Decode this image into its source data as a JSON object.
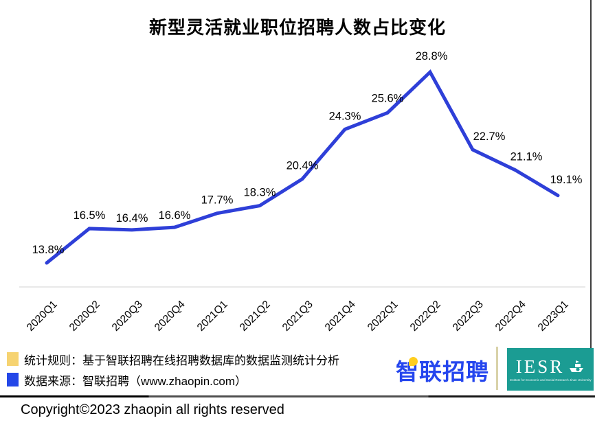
{
  "title": "新型灵活就业职位招聘人数占比变化",
  "chart_data": {
    "type": "line",
    "title": "新型灵活就业职位招聘人数占比变化",
    "categories": [
      "2020Q1",
      "2020Q2",
      "2020Q3",
      "2020Q4",
      "2021Q1",
      "2021Q2",
      "2021Q3",
      "2021Q4",
      "2022Q1",
      "2022Q2",
      "2022Q3",
      "2022Q4",
      "2023Q1"
    ],
    "values": [
      13.8,
      16.5,
      16.4,
      16.6,
      17.7,
      18.3,
      20.4,
      24.3,
      25.6,
      28.8,
      22.7,
      21.1,
      19.1
    ],
    "value_labels": [
      "13.8%",
      "16.5%",
      "16.4%",
      "16.6%",
      "17.7%",
      "18.3%",
      "20.4%",
      "24.3%",
      "25.6%",
      "28.8%",
      "22.7%",
      "21.1%",
      "19.1%"
    ],
    "xlabel": "",
    "ylabel": "",
    "ylim": [
      12,
      30
    ],
    "grid": false,
    "legend_position": "none",
    "line_color": "#2e3fd8",
    "axis_line_color": "#d9d9d9"
  },
  "legend": {
    "items": [
      {
        "color": "#f6d371",
        "label": "统计规则：基于智联招聘在线招聘数据库的数据监测统计分析"
      },
      {
        "color": "#2447e8",
        "label": "数据来源：智联招聘（www.zhaopin.com）"
      }
    ]
  },
  "logos": {
    "zhaopin_text": "智联招聘",
    "zhaopin_color": "#2546ee",
    "pin_color": "#ffce1f",
    "iesr_acronym": "IESR",
    "iesr_subtext": "Institute for Economic and Social Research   Jinan University",
    "iesr_bg": "#1b9c93"
  },
  "footer": {
    "copyright": "Copyright©2023 zhaopin all rights reserved"
  }
}
